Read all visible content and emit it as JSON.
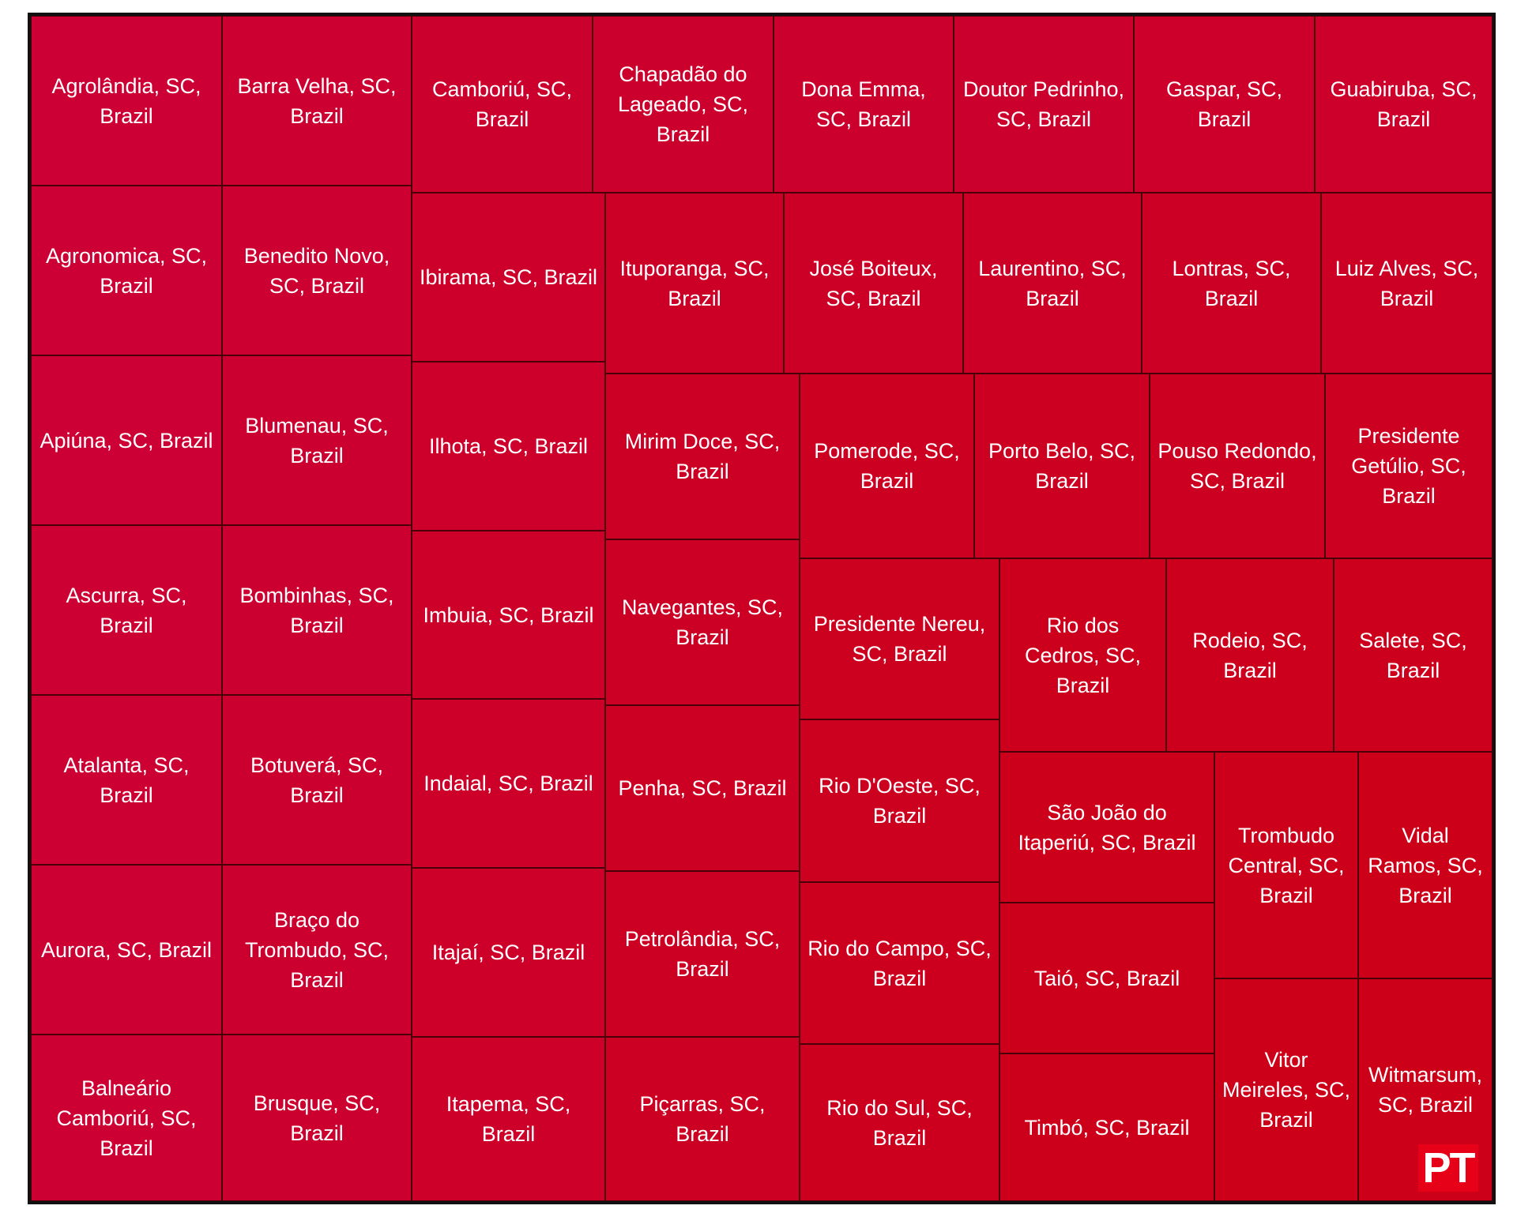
{
  "chart_data": {
    "type": "treemap",
    "items": [
      {
        "label": "Agrolândia, SC, Brazil",
        "color": "#cc0035"
      },
      {
        "label": "Agronomica, SC, Brazil",
        "color": "#cc0035"
      },
      {
        "label": "Apiúna, SC, Brazil",
        "color": "#cc0034"
      },
      {
        "label": "Ascurra, SC, Brazil",
        "color": "#cc0033"
      },
      {
        "label": "Atalanta, SC, Brazil",
        "color": "#cc0033"
      },
      {
        "label": "Aurora, SC, Brazil",
        "color": "#cc0032"
      },
      {
        "label": "Balneário Camboriú, SC, Brazil",
        "color": "#cc0032"
      },
      {
        "label": "Barra Velha, SC, Brazil",
        "color": "#cc0031"
      },
      {
        "label": "Benedito Novo, SC, Brazil",
        "color": "#cc0031"
      },
      {
        "label": "Blumenau, SC, Brazil",
        "color": "#cc0030"
      },
      {
        "label": "Bombinhas, SC, Brazil",
        "color": "#cc0030"
      },
      {
        "label": "Botuverá, SC, Brazil",
        "color": "#cc002f"
      },
      {
        "label": "Braço do Trombudo, SC, Brazil",
        "color": "#cc002f"
      },
      {
        "label": "Brusque, SC, Brazil",
        "color": "#cc002e"
      },
      {
        "label": "Camboriú, SC, Brazil",
        "color": "#cc002d"
      },
      {
        "label": "Chapadão do Lageado, SC, Brazil",
        "color": "#cc002d"
      },
      {
        "label": "Dona Emma, SC, Brazil",
        "color": "#cc002c"
      },
      {
        "label": "Doutor Pedrinho, SC, Brazil",
        "color": "#cc002c"
      },
      {
        "label": "Gaspar, SC, Brazil",
        "color": "#cc002b"
      },
      {
        "label": "Guabiruba, SC, Brazil",
        "color": "#cc002b"
      },
      {
        "label": "Ibirama, SC, Brazil",
        "color": "#cc002a"
      },
      {
        "label": "Ilhota, SC, Brazil",
        "color": "#cc002a"
      },
      {
        "label": "Imbuia, SC, Brazil",
        "color": "#cc0029"
      },
      {
        "label": "Indaial, SC, Brazil",
        "color": "#cc0029"
      },
      {
        "label": "Itajaí, SC, Brazil",
        "color": "#cc0028"
      },
      {
        "label": "Itapema, SC, Brazil",
        "color": "#cc0028"
      },
      {
        "label": "Ituporanga, SC, Brazil",
        "color": "#cc0027"
      },
      {
        "label": "José Boiteux, SC, Brazil",
        "color": "#cc0026"
      },
      {
        "label": "Laurentino, SC, Brazil",
        "color": "#cc0026"
      },
      {
        "label": "Lontras, SC, Brazil",
        "color": "#cc0025"
      },
      {
        "label": "Luiz Alves, SC, Brazil",
        "color": "#cc0025"
      },
      {
        "label": "Mirim Doce, SC, Brazil",
        "color": "#cc0024"
      },
      {
        "label": "Navegantes, SC, Brazil",
        "color": "#cc0024"
      },
      {
        "label": "Penha, SC, Brazil",
        "color": "#cc0023"
      },
      {
        "label": "Petrolândia, SC, Brazil",
        "color": "#cc0023"
      },
      {
        "label": "Piçarras, SC, Brazil",
        "color": "#cc0022"
      },
      {
        "label": "Pomerode, SC, Brazil",
        "color": "#cc0021"
      },
      {
        "label": "Porto Belo, SC, Brazil",
        "color": "#cc0021"
      },
      {
        "label": "Pouso Redondo, SC, Brazil",
        "color": "#cc0020"
      },
      {
        "label": "Presidente Getúlio, SC, Brazil",
        "color": "#cc0020"
      },
      {
        "label": "Presidente Nereu, SC, Brazil",
        "color": "#cc001f"
      },
      {
        "label": "Rio D'Oeste, SC, Brazil",
        "color": "#cc001f"
      },
      {
        "label": "Rio do Campo, SC, Brazil",
        "color": "#cc001e"
      },
      {
        "label": "Rio do Sul, SC, Brazil",
        "color": "#cc001e"
      },
      {
        "label": "Rio dos Cedros, SC, Brazil",
        "color": "#cc001d"
      },
      {
        "label": "Rodeio, SC, Brazil",
        "color": "#cc001c"
      },
      {
        "label": "Salete, SC, Brazil",
        "color": "#cc001c"
      },
      {
        "label": "São João do Itaperiú, SC, Brazil",
        "color": "#cc001b"
      },
      {
        "label": "Taió, SC, Brazil",
        "color": "#cc001b"
      },
      {
        "label": "Timbó, SC, Brazil",
        "color": "#cc001a"
      },
      {
        "label": "Trombudo Central, SC, Brazil",
        "color": "#cc001a"
      },
      {
        "label": "Vidal Ramos, SC, Brazil",
        "color": "#cc0019"
      },
      {
        "label": "Vitor Meireles, SC, Brazil",
        "color": "#cc0018"
      },
      {
        "label": "Witmarsum, SC, Brazil",
        "color": "#cc0018"
      }
    ]
  },
  "logo": {
    "text": "PT",
    "color": "#e60018"
  }
}
